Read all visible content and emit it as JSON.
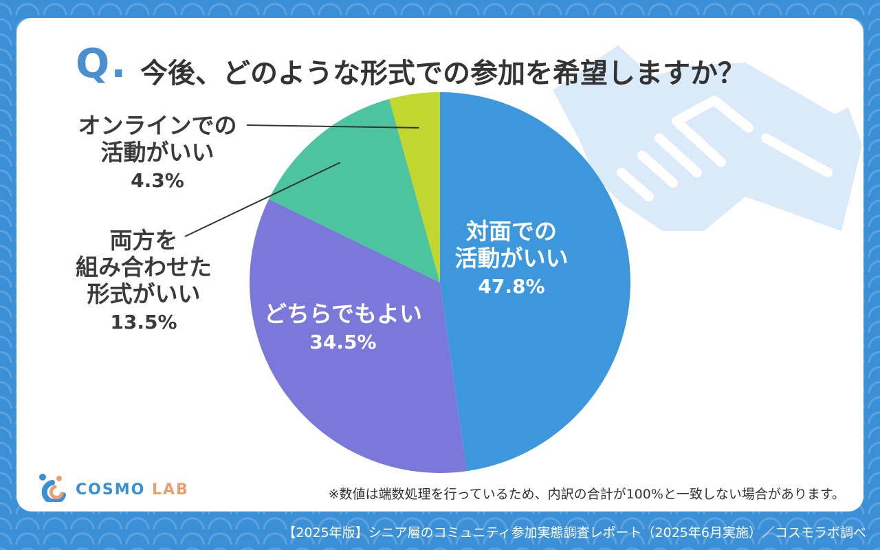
{
  "title": {
    "q": "Q.",
    "text": "今後、どのような形式での参加を希望しますか？"
  },
  "chart_data": {
    "type": "pie",
    "start_angle_deg": 0,
    "direction": "clockwise",
    "slices": [
      {
        "label": "対面での\n活動がいい",
        "value": 47.8,
        "value_label": "47.8%",
        "color": "#3d97dc",
        "label_position": "inside"
      },
      {
        "label": "どちらでもよい",
        "value": 34.5,
        "value_label": "34.5%",
        "color": "#7a78d9",
        "label_position": "inside"
      },
      {
        "label": "両方を\n組み合わせた\n形式がいい",
        "value": 13.5,
        "value_label": "13.5%",
        "color": "#4cc49e",
        "label_position": "outside-left"
      },
      {
        "label": "オンラインでの\n活動がいい",
        "value": 4.3,
        "value_label": "4.3%",
        "color": "#c1d62f",
        "label_position": "outside-left"
      }
    ]
  },
  "logo": {
    "part1": "COSMO ",
    "part2": "LAB",
    "primary_color": "#3a8fd6",
    "accent_color": "#e8a070"
  },
  "footnote": "※数値は端数処理を行っているため、内訳の合計が100%と一致しない場合があります。",
  "source": "【2025年版】シニア層のコミュニティ参加実態調査レポート（2025年6月実施）／コスモラボ調べ"
}
